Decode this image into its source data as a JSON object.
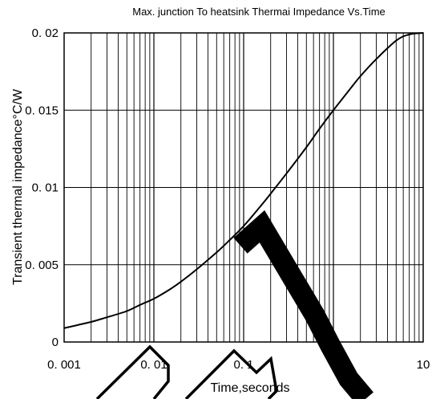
{
  "chart_data": {
    "type": "line",
    "title": "Max. junction To heatsink Thermai Impedance Vs.Time",
    "xlabel": "Time,seconds",
    "ylabel": "Transient thermal impedance°C/W",
    "x_scale": "log",
    "xlim": [
      0.001,
      10
    ],
    "ylim": [
      0,
      0.02
    ],
    "grid": true,
    "x_ticks": [
      "0. 001",
      "0. 01",
      "0. 1",
      "1",
      "10"
    ],
    "y_ticks": [
      "0",
      "0. 005",
      "0. 01",
      "0. 015",
      "0. 02"
    ],
    "series": [
      {
        "x": [
          0.001,
          0.002,
          0.003,
          0.005,
          0.007,
          0.01,
          0.015,
          0.02,
          0.03,
          0.05,
          0.07,
          0.1,
          0.15,
          0.2,
          0.3,
          0.5,
          0.7,
          1.0,
          1.5,
          2.0,
          3.0,
          5.0,
          7.0,
          10.0
        ],
        "y": [
          0.0009,
          0.0013,
          0.0016,
          0.002,
          0.0024,
          0.0028,
          0.0034,
          0.0039,
          0.0047,
          0.0058,
          0.0066,
          0.0075,
          0.0087,
          0.0096,
          0.0109,
          0.0126,
          0.0138,
          0.015,
          0.0163,
          0.0172,
          0.0183,
          0.0195,
          0.0199,
          0.02
        ]
      }
    ]
  },
  "watermark": {
    "text": "NM",
    "color": "#000000"
  }
}
